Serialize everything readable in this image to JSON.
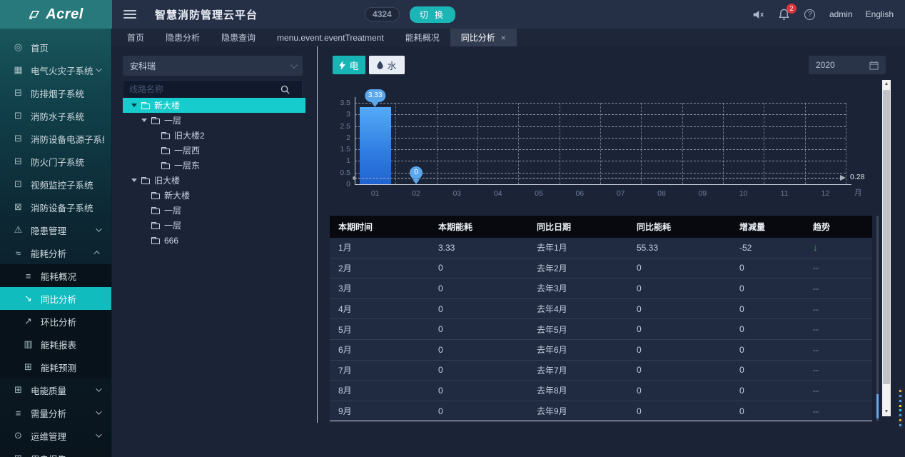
{
  "colors": {
    "accent": "#17b5b5",
    "sidebar_active": "#10bcbe",
    "tree_selected": "#16cccc",
    "bar_top": "#54aaf8",
    "bar_bottom": "#2063d0",
    "pin": "#5ba7ee",
    "trend_down_green": "#47a357",
    "bell_badge_red": "#d9363e"
  },
  "sidebar": {
    "logo": "Acrel",
    "items": [
      {
        "id": "home",
        "label": "首页",
        "icon": "home-icon",
        "glyph": "◎"
      },
      {
        "id": "electric-fire",
        "label": "电气火灾子系统",
        "icon": "chart-icon",
        "glyph": "▦",
        "arrow": "down"
      },
      {
        "id": "smoke-control",
        "label": "防排烟子系统",
        "icon": "lock-icon",
        "glyph": "⊟"
      },
      {
        "id": "fire-water",
        "label": "消防水子系统",
        "icon": "monitor-icon",
        "glyph": "⊡"
      },
      {
        "id": "fire-power",
        "label": "消防设备电源子系统",
        "icon": "lock-icon",
        "glyph": "⊟"
      },
      {
        "id": "fire-door",
        "label": "防火门子系统",
        "icon": "lock-icon",
        "glyph": "⊟"
      },
      {
        "id": "video-monitor",
        "label": "视频监控子系统",
        "icon": "video-icon",
        "glyph": "⊡"
      },
      {
        "id": "fire-device",
        "label": "消防设备子系统",
        "icon": "device-icon",
        "glyph": "⊠"
      },
      {
        "id": "hazard-mgmt",
        "label": "隐患管理",
        "icon": "warning-icon",
        "glyph": "⚠",
        "arrow": "down"
      },
      {
        "id": "energy-analysis",
        "label": "能耗分析",
        "icon": "wave-icon",
        "glyph": "≈",
        "arrow": "up",
        "children": [
          {
            "id": "energy-overview",
            "label": "能耗概况",
            "icon": "list-icon",
            "glyph": "≡"
          },
          {
            "id": "yoy-analysis",
            "label": "同比分析",
            "icon": "trend-down-icon",
            "glyph": "↘",
            "active": true
          },
          {
            "id": "mom-analysis",
            "label": "环比分析",
            "icon": "trend-up-icon",
            "glyph": "↗"
          },
          {
            "id": "energy-report",
            "label": "能耗报表",
            "icon": "bar-chart-icon",
            "glyph": "▥"
          },
          {
            "id": "energy-forecast",
            "label": "能耗预测",
            "icon": "forecast-icon",
            "glyph": "⊞"
          }
        ]
      },
      {
        "id": "power-quality",
        "label": "电能质量",
        "icon": "battery-icon",
        "glyph": "⊞",
        "arrow": "down"
      },
      {
        "id": "demand-analysis",
        "label": "需量分析",
        "icon": "list2-icon",
        "glyph": "≡",
        "arrow": "down"
      },
      {
        "id": "ops-mgmt",
        "label": "运维管理",
        "icon": "ops-icon",
        "glyph": "⊙",
        "arrow": "down"
      },
      {
        "id": "user-report",
        "label": "用户报告",
        "icon": "report-icon",
        "glyph": "⊞"
      }
    ]
  },
  "header": {
    "title": "智慧消防管理云平台",
    "count_badge": "4324",
    "switch_label": "切 换",
    "bell_count": "2",
    "user": "admin",
    "language": "English"
  },
  "tabs": [
    {
      "label": "首页"
    },
    {
      "label": "隐患分析"
    },
    {
      "label": "隐患查询"
    },
    {
      "label": "menu.event.eventTreatment"
    },
    {
      "label": "能耗概况"
    },
    {
      "label": "同比分析",
      "active": true,
      "closable": true
    }
  ],
  "tree_panel": {
    "org_selected": "安科瑞",
    "search_placeholder": "线路名称",
    "nodes": [
      {
        "label": "新大楼",
        "level": 0,
        "expander": true,
        "selected": true
      },
      {
        "label": "一层",
        "level": 1,
        "expander": true
      },
      {
        "label": "旧大楼2",
        "level": 2
      },
      {
        "label": "一层西",
        "level": 2
      },
      {
        "label": "一层东",
        "level": 2
      },
      {
        "label": "旧大楼",
        "level": 0,
        "expander": true
      },
      {
        "label": "新大楼",
        "level": 1
      },
      {
        "label": "一层",
        "level": 1
      },
      {
        "label": "一层",
        "level": 1
      },
      {
        "label": "666",
        "level": 1
      }
    ]
  },
  "controls": {
    "electric_label": "电",
    "water_label": "水",
    "year": "2020"
  },
  "chart_data": {
    "type": "bar",
    "categories": [
      "01",
      "02",
      "03",
      "04",
      "05",
      "06",
      "07",
      "08",
      "09",
      "10",
      "11",
      "12"
    ],
    "values": [
      3.33,
      0,
      0,
      0,
      0,
      0,
      0,
      0,
      0,
      0,
      0,
      0
    ],
    "pins": [
      {
        "month_index": 0,
        "label": "3.33",
        "value": 3.33
      },
      {
        "month_index": 1,
        "label": "0",
        "value": 0
      }
    ],
    "ylim": [
      0,
      3.5
    ],
    "yticks": [
      0,
      0.5,
      1,
      1.5,
      2,
      2.5,
      3,
      3.5
    ],
    "x_unit": "月",
    "markline": {
      "value": 0.28,
      "label": "0.28"
    },
    "grid": "dashed",
    "title": "",
    "xlabel": "月",
    "ylabel": ""
  },
  "table": {
    "headers": [
      "本期时间",
      "本期能耗",
      "同比日期",
      "同比能耗",
      "增减量",
      "趋势"
    ],
    "rows": [
      [
        "1月",
        "3.33",
        "去年1月",
        "55.33",
        "-52",
        "↓"
      ],
      [
        "2月",
        "0",
        "去年2月",
        "0",
        "0",
        "--"
      ],
      [
        "3月",
        "0",
        "去年3月",
        "0",
        "0",
        "--"
      ],
      [
        "4月",
        "0",
        "去年4月",
        "0",
        "0",
        "--"
      ],
      [
        "5月",
        "0",
        "去年5月",
        "0",
        "0",
        "--"
      ],
      [
        "6月",
        "0",
        "去年6月",
        "0",
        "0",
        "--"
      ],
      [
        "7月",
        "0",
        "去年7月",
        "0",
        "0",
        "--"
      ],
      [
        "8月",
        "0",
        "去年8月",
        "0",
        "0",
        "--"
      ],
      [
        "9月",
        "0",
        "去年9月",
        "0",
        "0",
        "--"
      ]
    ]
  }
}
